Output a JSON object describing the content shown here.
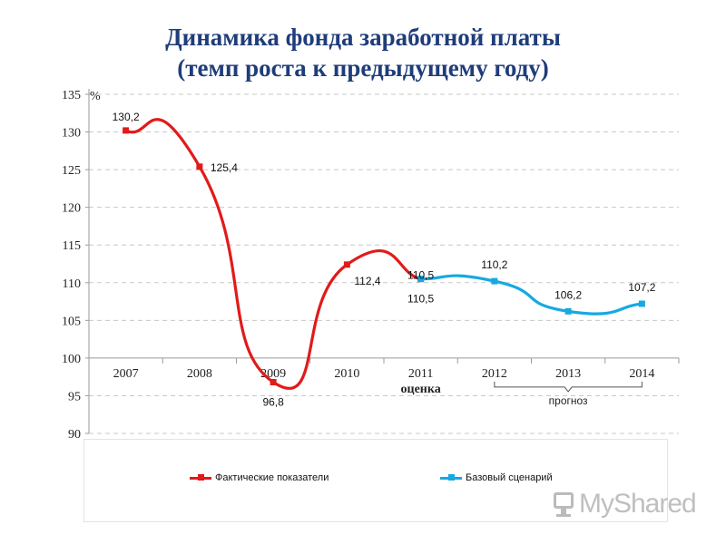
{
  "title": {
    "line1": "Динамика фонда заработной платы",
    "line2": "(темп роста к предыдущему году)"
  },
  "watermark": "MyShared",
  "colors": {
    "actual": "#e21a1a",
    "base": "#16a9e1",
    "grid": "#c8c8c8",
    "title": "#1f3d7a"
  },
  "chart_data": {
    "type": "line",
    "title": "Динамика фонда заработной платы (темп роста к предыдущему году)",
    "y_unit": "%",
    "ylim": [
      90,
      135
    ],
    "y_ticks": [
      90,
      95,
      100,
      105,
      110,
      115,
      120,
      125,
      130,
      135
    ],
    "grid": "horizontal dashed",
    "legend": "bottom",
    "x_axis_at": 100,
    "categories": [
      "2007",
      "2008",
      "2009",
      "2010",
      "2011",
      "2012",
      "2013",
      "2014"
    ],
    "category_sublabels": {
      "2011": "оценка"
    },
    "annotations": [
      {
        "text": "прогноз",
        "span": [
          "2012",
          "2014"
        ]
      }
    ],
    "series": [
      {
        "name": "Фактические показатели",
        "color": "#e21a1a",
        "x": [
          "2007",
          "2008",
          "2009",
          "2010",
          "2011"
        ],
        "values": [
          130.2,
          125.4,
          96.8,
          112.4,
          110.5
        ],
        "labels": [
          "130,2",
          "125,4",
          "96,8",
          "112,4",
          "110,5"
        ]
      },
      {
        "name": "Базовый сценарий",
        "color": "#16a9e1",
        "x": [
          "2011",
          "2012",
          "2013",
          "2014"
        ],
        "values": [
          110.5,
          110.2,
          106.2,
          107.2
        ],
        "labels": [
          "",
          "110,2",
          "106,2",
          "107,2"
        ]
      }
    ]
  }
}
